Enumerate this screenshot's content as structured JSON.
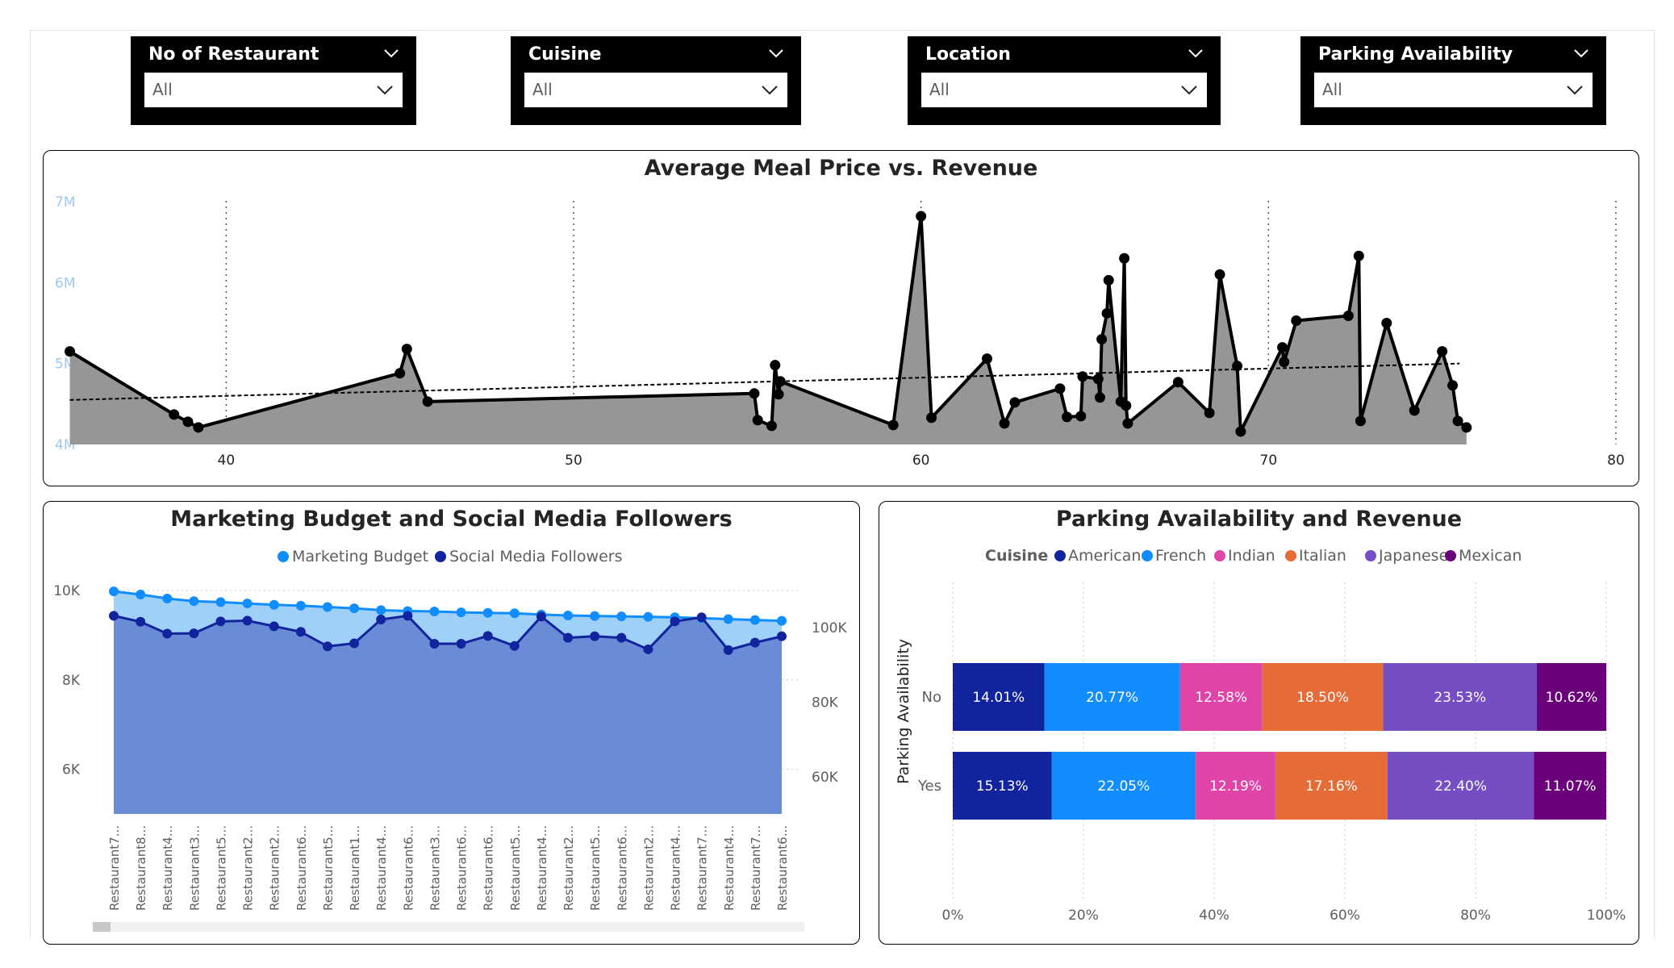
{
  "slicers": [
    {
      "title": "No of Restaurant",
      "value": "All"
    },
    {
      "title": "Cuisine",
      "value": "All"
    },
    {
      "title": "Location",
      "value": "All"
    },
    {
      "title": "Parking Availability",
      "value": "All"
    }
  ],
  "chart_data": [
    {
      "type": "area",
      "title": "Average Meal Price vs. Revenue",
      "xlabel": "",
      "ylabel": "",
      "xlim": [
        35,
        80
      ],
      "ylim": [
        4000000,
        7000000
      ],
      "x_ticks": [
        "40",
        "50",
        "60",
        "70",
        "80"
      ],
      "y_ticks": [
        "4M",
        "5M",
        "6M",
        "7M"
      ],
      "trendline": {
        "x": [
          35.5,
          75.5
        ],
        "y": [
          4550000,
          5000000
        ]
      },
      "grid": "vertical dotted",
      "points": [
        {
          "x": 35.5,
          "y": 5150000
        },
        {
          "x": 38.5,
          "y": 4370000
        },
        {
          "x": 38.9,
          "y": 4280000
        },
        {
          "x": 39.2,
          "y": 4210000
        },
        {
          "x": 45.0,
          "y": 4880000
        },
        {
          "x": 45.2,
          "y": 5180000
        },
        {
          "x": 45.8,
          "y": 4530000
        },
        {
          "x": 55.2,
          "y": 4630000
        },
        {
          "x": 55.3,
          "y": 4300000
        },
        {
          "x": 55.7,
          "y": 4230000
        },
        {
          "x": 55.8,
          "y": 4980000
        },
        {
          "x": 55.9,
          "y": 4620000
        },
        {
          "x": 55.95,
          "y": 4780000
        },
        {
          "x": 59.2,
          "y": 4240000
        },
        {
          "x": 60.0,
          "y": 6820000
        },
        {
          "x": 60.3,
          "y": 4330000
        },
        {
          "x": 61.9,
          "y": 5060000
        },
        {
          "x": 62.4,
          "y": 4260000
        },
        {
          "x": 62.7,
          "y": 4520000
        },
        {
          "x": 64.0,
          "y": 4690000
        },
        {
          "x": 64.2,
          "y": 4340000
        },
        {
          "x": 64.6,
          "y": 4350000
        },
        {
          "x": 64.65,
          "y": 4840000
        },
        {
          "x": 65.1,
          "y": 4810000
        },
        {
          "x": 65.15,
          "y": 4580000
        },
        {
          "x": 65.2,
          "y": 5300000
        },
        {
          "x": 65.35,
          "y": 5620000
        },
        {
          "x": 65.4,
          "y": 6030000
        },
        {
          "x": 65.75,
          "y": 4530000
        },
        {
          "x": 65.85,
          "y": 6300000
        },
        {
          "x": 65.9,
          "y": 4480000
        },
        {
          "x": 65.95,
          "y": 4260000
        },
        {
          "x": 67.4,
          "y": 4770000
        },
        {
          "x": 68.3,
          "y": 4390000
        },
        {
          "x": 68.6,
          "y": 6100000
        },
        {
          "x": 69.1,
          "y": 4970000
        },
        {
          "x": 69.2,
          "y": 4160000
        },
        {
          "x": 70.4,
          "y": 5200000
        },
        {
          "x": 70.45,
          "y": 5020000
        },
        {
          "x": 70.8,
          "y": 5530000
        },
        {
          "x": 72.3,
          "y": 5590000
        },
        {
          "x": 72.6,
          "y": 6330000
        },
        {
          "x": 72.65,
          "y": 4290000
        },
        {
          "x": 73.4,
          "y": 5500000
        },
        {
          "x": 74.2,
          "y": 4420000
        },
        {
          "x": 75.0,
          "y": 5150000
        },
        {
          "x": 75.3,
          "y": 4730000
        },
        {
          "x": 75.45,
          "y": 4290000
        },
        {
          "x": 75.7,
          "y": 4210000
        }
      ]
    },
    {
      "type": "area",
      "title": "Marketing Budget and Social Media Followers",
      "legend": [
        "Marketing Budget",
        "Social Media Followers"
      ],
      "legend_position": "top-center",
      "y_left_ticks": [
        "6K",
        "8K",
        "10K"
      ],
      "y_left_lim": [
        5000,
        10000
      ],
      "y_right_ticks": [
        "60K",
        "80K",
        "100K"
      ],
      "y_right_lim": [
        50000,
        110000
      ],
      "categories": [
        "Restaurant7...",
        "Restaurant8...",
        "Restaurant4...",
        "Restaurant3...",
        "Restaurant5...",
        "Restaurant2...",
        "Restaurant2...",
        "Restaurant6...",
        "Restaurant5...",
        "Restaurant1...",
        "Restaurant4...",
        "Restaurant6...",
        "Restaurant3...",
        "Restaurant6...",
        "Restaurant6...",
        "Restaurant5...",
        "Restaurant4...",
        "Restaurant2...",
        "Restaurant5...",
        "Restaurant6...",
        "Restaurant2...",
        "Restaurant4...",
        "Restaurant7...",
        "Restaurant4...",
        "Restaurant7...",
        "Restaurant6..."
      ],
      "series": [
        {
          "name": "Marketing Budget",
          "axis": "left",
          "color": "#118dff",
          "values": [
            9980,
            9910,
            9820,
            9760,
            9740,
            9710,
            9680,
            9660,
            9630,
            9600,
            9560,
            9540,
            9530,
            9510,
            9500,
            9490,
            9460,
            9440,
            9430,
            9420,
            9410,
            9400,
            9380,
            9360,
            9340,
            9320
          ]
        },
        {
          "name": "Social Media Followers",
          "axis": "right",
          "color": "#12239e",
          "values": [
            103200,
            101600,
            98400,
            98500,
            101700,
            101900,
            100400,
            98900,
            95000,
            95800,
            102200,
            103200,
            95700,
            95700,
            97800,
            95100,
            103000,
            97300,
            97700,
            97300,
            94200,
            101700,
            102800,
            94000,
            96000,
            97700
          ]
        }
      ]
    },
    {
      "type": "bar",
      "stacked": "100%",
      "orientation": "horizontal",
      "title": "Parking Availability and Revenue",
      "legend_title": "Cuisine",
      "legend": [
        "American",
        "French",
        "Indian",
        "Italian",
        "Japanese",
        "Mexican"
      ],
      "legend_position": "top-center",
      "ylabel": "Parking Availability",
      "categories": [
        "No",
        "Yes"
      ],
      "x_ticks": [
        "0%",
        "20%",
        "40%",
        "60%",
        "80%",
        "100%"
      ],
      "series": [
        {
          "name": "American",
          "color": "#12239e",
          "values": [
            14.01,
            15.13
          ],
          "labels": [
            "14.01%",
            "15.13%"
          ]
        },
        {
          "name": "French",
          "color": "#118dff",
          "values": [
            20.77,
            22.05
          ],
          "labels": [
            "20.77%",
            "22.05%"
          ]
        },
        {
          "name": "Indian",
          "color": "#e044a7",
          "values": [
            12.58,
            12.19
          ],
          "labels": [
            "12.58%",
            "12.19%"
          ]
        },
        {
          "name": "Italian",
          "color": "#e66c37",
          "values": [
            18.5,
            17.16
          ],
          "labels": [
            "18.50%",
            "17.16%"
          ]
        },
        {
          "name": "Japanese",
          "color": "#744ec2",
          "values": [
            23.53,
            22.4
          ],
          "labels": [
            "23.53%",
            "22.40%"
          ]
        },
        {
          "name": "Mexican",
          "color": "#6b007b",
          "values": [
            10.62,
            11.07
          ],
          "labels": [
            "10.62%",
            "11.07%"
          ]
        }
      ]
    }
  ]
}
